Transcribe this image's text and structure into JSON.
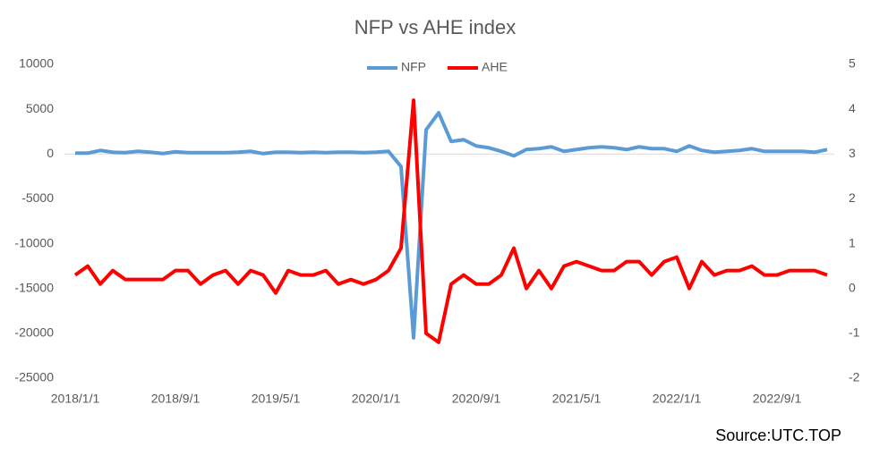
{
  "chart_data": {
    "type": "line",
    "title": "NFP vs AHE index",
    "categories": [
      "2018/1/1",
      null,
      null,
      null,
      null,
      null,
      null,
      null,
      "2018/9/1",
      null,
      null,
      null,
      null,
      null,
      null,
      null,
      "2019/5/1",
      null,
      null,
      null,
      null,
      null,
      null,
      null,
      "2020/1/1",
      null,
      null,
      null,
      null,
      null,
      null,
      null,
      "2020/9/1",
      null,
      null,
      null,
      null,
      null,
      null,
      null,
      "2021/5/1",
      null,
      null,
      null,
      null,
      null,
      null,
      null,
      "2022/1/1",
      null,
      null,
      null,
      null,
      null,
      null,
      null,
      "2022/9/1",
      null,
      null,
      null,
      null
    ],
    "series": [
      {
        "name": "NFP",
        "color": "#5b9bd5",
        "values": [
          100,
          100,
          400,
          200,
          150,
          300,
          200,
          50,
          250,
          150,
          150,
          150,
          150,
          200,
          300,
          50,
          200,
          200,
          150,
          200,
          150,
          200,
          200,
          150,
          200,
          300,
          -1400,
          -20500,
          2700,
          4600,
          1400,
          1600,
          900,
          700,
          300,
          -200,
          500,
          600,
          800,
          300,
          500,
          700,
          800,
          700,
          500,
          800,
          600,
          600,
          300,
          900,
          400,
          200,
          300,
          400,
          600,
          300,
          300,
          300,
          300,
          200,
          500
        ]
      },
      {
        "name": "AHE",
        "color": "#ff0000",
        "axis": "y2",
        "values": [
          0.3,
          0.5,
          0.1,
          0.4,
          0.2,
          0.2,
          0.2,
          0.2,
          0.4,
          0.4,
          0.1,
          0.3,
          0.4,
          0.1,
          0.4,
          0.3,
          -0.1,
          0.4,
          0.3,
          0.3,
          0.4,
          0.1,
          0.2,
          0.1,
          0.2,
          0.4,
          0.9,
          4.2,
          -1.0,
          -1.2,
          0.1,
          0.3,
          0.1,
          0.1,
          0.3,
          0.9,
          0,
          0.4,
          0,
          0.5,
          0.6,
          0.5,
          0.4,
          0.4,
          0.6,
          0.6,
          0.3,
          0.6,
          0.7,
          0,
          0.6,
          0.3,
          0.4,
          0.4,
          0.5,
          0.3,
          0.3,
          0.4,
          0.4,
          0.4,
          0.3
        ]
      }
    ],
    "ylim": [
      -25000,
      10000
    ],
    "yticks": [
      -25000,
      -20000,
      -15000,
      -10000,
      -5000,
      0,
      5000,
      10000
    ],
    "y2lim": [
      -2,
      5
    ],
    "y2ticks": [
      -2,
      -1,
      0,
      1,
      2,
      3,
      4,
      5
    ],
    "legend": "top",
    "source": "Source:UTC.TOP"
  }
}
